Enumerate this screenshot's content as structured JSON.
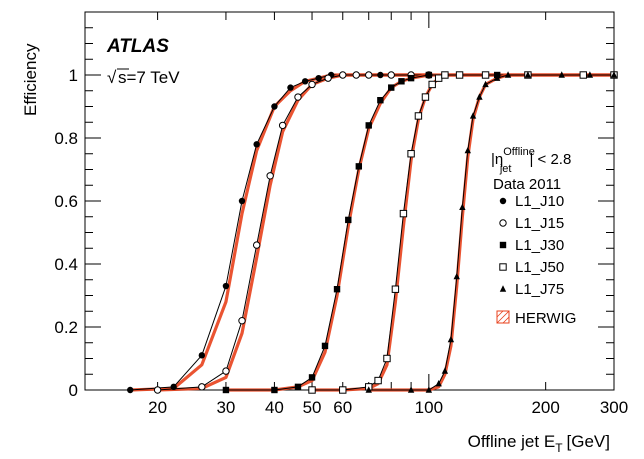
{
  "chart_data": {
    "type": "line",
    "experiment_label": "ATLAS",
    "energy_label": "s=7 TeV",
    "sqrt_symbol": "√",
    "xlabel": "Offline jet E",
    "xlabel_sub": "T",
    "xlabel_unit": "[GeV]",
    "ylabel": "Efficiency",
    "x_scale": "log",
    "xlim": [
      13,
      300
    ],
    "ylim": [
      0,
      1.2
    ],
    "x_ticks": [
      20,
      30,
      40,
      50,
      60,
      100,
      200,
      300
    ],
    "y_ticks": [
      0,
      0.2,
      0.4,
      0.6,
      0.8,
      1
    ],
    "y_tick_labels": [
      "0",
      "0.2",
      "0.4",
      "0.6",
      "0.8",
      "1"
    ],
    "eta_cut": {
      "prefix": "|η",
      "sup": "Offline",
      "sub": "jet",
      "suffix": "| < 2.8"
    },
    "data_label": "Data 2011",
    "mc_label": "HERWIG",
    "series": [
      {
        "name": "L1_J10",
        "marker": "filled-circle",
        "x": [
          17,
          22,
          26,
          30,
          33,
          36,
          40,
          44,
          48,
          52,
          56,
          60,
          65,
          70,
          75,
          80,
          90,
          100
        ],
        "y": [
          0.0,
          0.01,
          0.11,
          0.33,
          0.6,
          0.78,
          0.9,
          0.96,
          0.98,
          0.99,
          1.0,
          1.0,
          1.0,
          1.0,
          1.0,
          1.0,
          1.0,
          1.0
        ],
        "mc": [
          0.0,
          0.005,
          0.08,
          0.28,
          0.56,
          0.76,
          0.9,
          0.95,
          0.98,
          0.99,
          1.0,
          1.0,
          1.0,
          1.0,
          1.0,
          1.0,
          1.0,
          1.0
        ]
      },
      {
        "name": "L1_J15",
        "marker": "open-circle",
        "x": [
          20,
          26,
          30,
          33,
          36,
          39,
          42,
          46,
          50,
          55,
          60,
          65,
          70,
          80,
          90,
          100
        ],
        "y": [
          0.0,
          0.01,
          0.06,
          0.22,
          0.46,
          0.68,
          0.84,
          0.93,
          0.97,
          0.99,
          1.0,
          1.0,
          1.0,
          1.0,
          1.0,
          1.0
        ],
        "mc": [
          0.0,
          0.005,
          0.04,
          0.18,
          0.42,
          0.65,
          0.82,
          0.92,
          0.97,
          0.99,
          1.0,
          1.0,
          1.0,
          1.0,
          1.0,
          1.0
        ]
      },
      {
        "name": "L1_J30",
        "marker": "filled-square",
        "x": [
          30,
          40,
          46,
          50,
          54,
          58,
          62,
          66,
          70,
          75,
          80,
          85,
          90,
          100,
          120,
          150
        ],
        "y": [
          0.0,
          0.0,
          0.01,
          0.04,
          0.14,
          0.32,
          0.54,
          0.71,
          0.84,
          0.92,
          0.96,
          0.98,
          0.99,
          1.0,
          1.0,
          1.0
        ],
        "mc": [
          0.0,
          0.0,
          0.01,
          0.03,
          0.12,
          0.3,
          0.52,
          0.7,
          0.83,
          0.91,
          0.96,
          0.98,
          0.99,
          1.0,
          1.0,
          1.0
        ]
      },
      {
        "name": "L1_J50",
        "marker": "open-square",
        "x": [
          50,
          60,
          70,
          74,
          78,
          82,
          86,
          90,
          94,
          98,
          102,
          106,
          110,
          120,
          140,
          180,
          250,
          300
        ],
        "y": [
          0.0,
          0.0,
          0.01,
          0.03,
          0.1,
          0.32,
          0.56,
          0.75,
          0.87,
          0.93,
          0.97,
          0.99,
          1.0,
          1.0,
          1.0,
          1.0,
          1.0,
          1.0
        ],
        "mc": [
          0.0,
          0.0,
          0.005,
          0.02,
          0.08,
          0.28,
          0.52,
          0.73,
          0.86,
          0.93,
          0.97,
          0.99,
          1.0,
          1.0,
          1.0,
          1.0,
          1.0,
          1.0
        ]
      },
      {
        "name": "L1_J75",
        "marker": "filled-triangle",
        "x": [
          70,
          90,
          100,
          106,
          110,
          114,
          118,
          122,
          126,
          130,
          135,
          140,
          150,
          160,
          180,
          220,
          260,
          300
        ],
        "y": [
          0.0,
          0.0,
          0.0,
          0.02,
          0.06,
          0.16,
          0.36,
          0.58,
          0.76,
          0.87,
          0.93,
          0.97,
          0.99,
          1.0,
          1.0,
          1.0,
          1.0,
          1.0
        ],
        "mc": [
          0.0,
          0.0,
          0.0,
          0.01,
          0.05,
          0.14,
          0.33,
          0.55,
          0.74,
          0.86,
          0.93,
          0.97,
          0.99,
          1.0,
          1.0,
          1.0,
          1.0,
          1.0
        ]
      }
    ],
    "colors": {
      "data": "#000000",
      "mc": "#e8411c"
    },
    "grid": false,
    "legend_position": "right"
  }
}
